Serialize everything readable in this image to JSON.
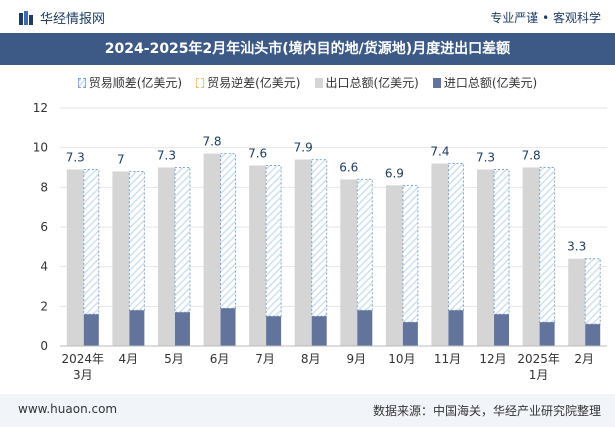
{
  "header": {
    "brand": "华经情报网",
    "tagline": "专业严谨 • 客观科学",
    "title": "2024-2025年2月年汕头市(境内目的地/货源地)月度进出口差额"
  },
  "legend": {
    "surplus": "贸易顺差(亿美元)",
    "deficit": "贸易逆差(亿美元)",
    "exports": "出口总额(亿美元)",
    "imports": "进口总额(亿美元)"
  },
  "footer": {
    "site": "www.huaon.com",
    "source": "数据来源：中国海关，华经产业研究院整理"
  },
  "colors": {
    "exports": "#d5d5d5",
    "imports": "#62749b",
    "surplus_stroke": "#7fa6c8",
    "surplus_fill": "#cfe0ee",
    "deficit_stroke": "#e3c36b",
    "header_bg": "#3d5a86",
    "label": "#1f3d63"
  },
  "chart_data": {
    "type": "bar",
    "categories": [
      "2024年3月",
      "4月",
      "5月",
      "6月",
      "7月",
      "8月",
      "9月",
      "10月",
      "11月",
      "12月",
      "2025年1月",
      "2月"
    ],
    "series": [
      {
        "name": "出口总额(亿美元)",
        "values": [
          8.9,
          8.8,
          9.0,
          9.7,
          9.1,
          9.4,
          8.4,
          8.1,
          9.2,
          8.9,
          9.0,
          4.4
        ]
      },
      {
        "name": "进口总额(亿美元)",
        "values": [
          1.6,
          1.8,
          1.7,
          1.9,
          1.5,
          1.5,
          1.8,
          1.2,
          1.8,
          1.6,
          1.2,
          1.1
        ]
      },
      {
        "name": "贸易顺差(亿美元)",
        "values": [
          7.3,
          7,
          7.3,
          7.8,
          7.6,
          7.9,
          6.6,
          6.9,
          7.4,
          7.3,
          7.8,
          3.3
        ]
      },
      {
        "name": "贸易逆差(亿美元)",
        "values": [
          0,
          0,
          0,
          0,
          0,
          0,
          0,
          0,
          0,
          0,
          0,
          0
        ]
      }
    ],
    "data_labels": [
      "7.3",
      "7",
      "7.3",
      "7.8",
      "7.6",
      "7.9",
      "6.6",
      "6.9",
      "7.4",
      "7.3",
      "7.8",
      "3.3"
    ],
    "yticks": [
      "0",
      "2",
      "4",
      "6",
      "8",
      "10",
      "12"
    ],
    "ylim": [
      0,
      12
    ],
    "grid": true,
    "legend_position": "top"
  }
}
